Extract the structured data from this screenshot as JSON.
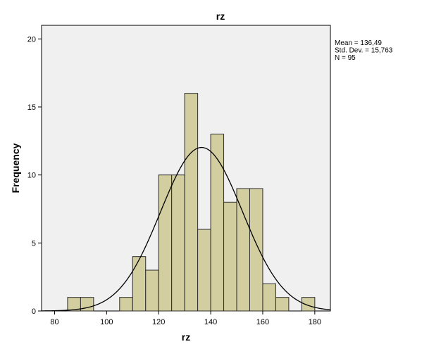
{
  "chart_data": {
    "type": "histogram",
    "title": "rz",
    "xlabel": "rz",
    "ylabel": "Frequency",
    "xlim": [
      75,
      186
    ],
    "ylim": [
      0,
      21
    ],
    "xticks": [
      80,
      100,
      120,
      140,
      160,
      180
    ],
    "yticks": [
      0,
      5,
      10,
      15,
      20
    ],
    "bin_width": 5,
    "bins": [
      {
        "start": 85,
        "end": 90,
        "count": 1
      },
      {
        "start": 90,
        "end": 95,
        "count": 1
      },
      {
        "start": 95,
        "end": 100,
        "count": 0
      },
      {
        "start": 100,
        "end": 105,
        "count": 0
      },
      {
        "start": 105,
        "end": 110,
        "count": 1
      },
      {
        "start": 110,
        "end": 115,
        "count": 4
      },
      {
        "start": 115,
        "end": 120,
        "count": 3
      },
      {
        "start": 120,
        "end": 125,
        "count": 10
      },
      {
        "start": 125,
        "end": 130,
        "count": 10
      },
      {
        "start": 130,
        "end": 135,
        "count": 16
      },
      {
        "start": 135,
        "end": 140,
        "count": 6
      },
      {
        "start": 140,
        "end": 145,
        "count": 13
      },
      {
        "start": 145,
        "end": 150,
        "count": 8
      },
      {
        "start": 150,
        "end": 155,
        "count": 9
      },
      {
        "start": 155,
        "end": 160,
        "count": 9
      },
      {
        "start": 160,
        "end": 165,
        "count": 2
      },
      {
        "start": 165,
        "end": 170,
        "count": 1
      },
      {
        "start": 170,
        "end": 175,
        "count": 0
      },
      {
        "start": 175,
        "end": 180,
        "count": 1
      }
    ],
    "normal_curve": {
      "mean": 136.49,
      "sd": 15.763,
      "n": 95
    },
    "stats_text": [
      "Mean = 136,49",
      "Std. Dev. = 15,763",
      "N = 95"
    ],
    "legend_position": "top-right",
    "grid": false,
    "colors": {
      "bar_fill": "#d3ce9f",
      "bar_stroke": "#2b2b2b",
      "plot_background": "#f0f0f0",
      "curve": "#000000",
      "axis": "#000000"
    }
  }
}
